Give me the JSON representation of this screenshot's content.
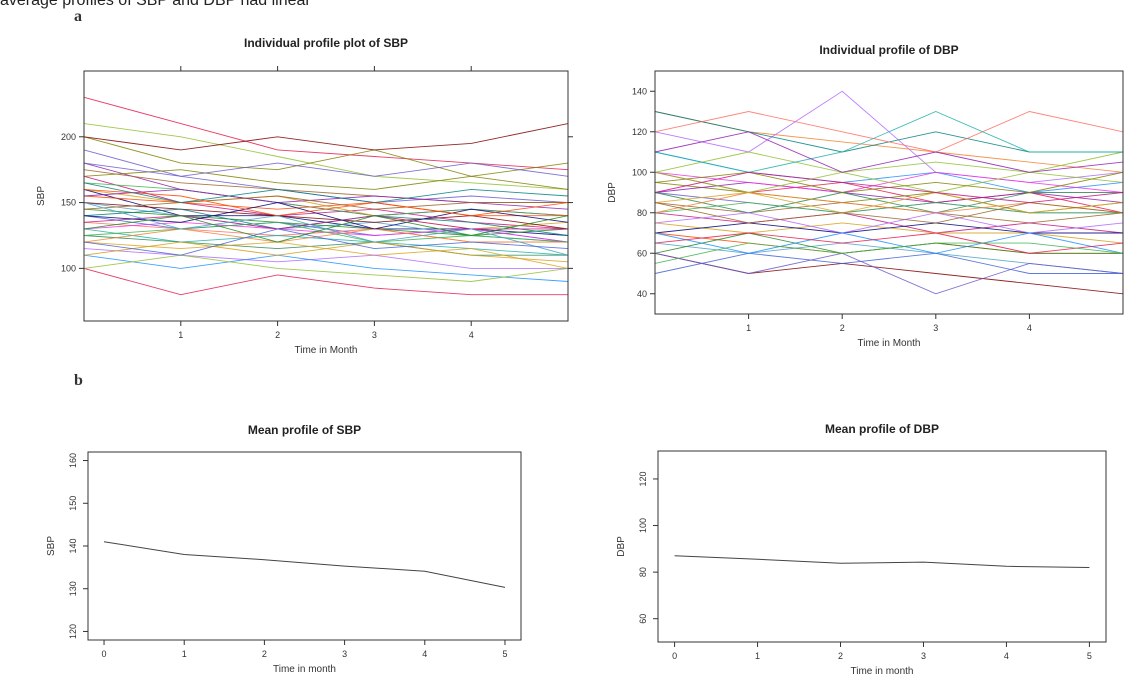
{
  "page": {
    "top_text": "average profiles of  SBP and DBP  had linear",
    "label_a": "a",
    "label_b": "b"
  },
  "chart_data": [
    {
      "id": "sbp_individual",
      "type": "line",
      "title": "Individual profile plot of SBP",
      "xlabel": "Time in Month",
      "ylabel": "SBP",
      "xlim": [
        0,
        5
      ],
      "ylim": [
        60,
        250
      ],
      "xticks": [
        1,
        2,
        3,
        4
      ],
      "yticks": [
        100,
        150,
        200
      ],
      "grid": false,
      "series_note": "many individual subject trajectories",
      "series": [
        {
          "values": [
            230,
            210,
            190,
            185,
            180,
            175
          ]
        },
        {
          "values": [
            210,
            200,
            185,
            170,
            165,
            160
          ]
        },
        {
          "values": [
            200,
            180,
            175,
            190,
            170,
            180
          ]
        },
        {
          "values": [
            190,
            170,
            160,
            150,
            155,
            150
          ]
        },
        {
          "values": [
            180,
            160,
            150,
            140,
            145,
            140
          ]
        },
        {
          "values": [
            175,
            165,
            160,
            155,
            150,
            150
          ]
        },
        {
          "values": [
            170,
            150,
            140,
            145,
            135,
            130
          ]
        },
        {
          "values": [
            165,
            160,
            150,
            140,
            145,
            140
          ]
        },
        {
          "values": [
            160,
            150,
            155,
            140,
            130,
            135
          ]
        },
        {
          "values": [
            160,
            140,
            140,
            130,
            130,
            125
          ]
        },
        {
          "values": [
            155,
            150,
            145,
            150,
            140,
            140
          ]
        },
        {
          "values": [
            150,
            140,
            130,
            135,
            125,
            120
          ]
        },
        {
          "values": [
            150,
            145,
            140,
            135,
            140,
            130
          ]
        },
        {
          "values": [
            145,
            140,
            135,
            130,
            125,
            130
          ]
        },
        {
          "values": [
            140,
            130,
            135,
            125,
            130,
            120
          ]
        },
        {
          "values": [
            140,
            145,
            130,
            140,
            135,
            125
          ]
        },
        {
          "values": [
            135,
            130,
            125,
            130,
            120,
            120
          ]
        },
        {
          "values": [
            130,
            120,
            125,
            120,
            115,
            110
          ]
        },
        {
          "values": [
            130,
            135,
            130,
            125,
            130,
            120
          ]
        },
        {
          "values": [
            125,
            120,
            115,
            120,
            110,
            110
          ]
        },
        {
          "values": [
            120,
            115,
            120,
            110,
            115,
            100
          ]
        },
        {
          "values": [
            120,
            130,
            120,
            130,
            120,
            120
          ]
        },
        {
          "values": [
            115,
            110,
            105,
            110,
            100,
            100
          ]
        },
        {
          "values": [
            110,
            100,
            110,
            100,
            95,
            90
          ]
        },
        {
          "values": [
            100,
            80,
            95,
            85,
            80,
            80
          ]
        },
        {
          "values": [
            100,
            110,
            100,
            95,
            90,
            100
          ]
        },
        {
          "values": [
            170,
            175,
            165,
            160,
            170,
            160
          ]
        },
        {
          "values": [
            180,
            170,
            180,
            170,
            180,
            170
          ]
        },
        {
          "values": [
            155,
            160,
            150,
            155,
            150,
            145
          ]
        },
        {
          "values": [
            145,
            150,
            155,
            145,
            150,
            150
          ]
        },
        {
          "values": [
            135,
            140,
            130,
            140,
            130,
            130
          ]
        },
        {
          "values": [
            125,
            130,
            135,
            120,
            125,
            120
          ]
        },
        {
          "values": [
            110,
            120,
            110,
            120,
            110,
            105
          ]
        },
        {
          "values": [
            140,
            135,
            150,
            130,
            145,
            135
          ]
        },
        {
          "values": [
            160,
            155,
            140,
            150,
            140,
            150
          ]
        },
        {
          "values": [
            150,
            130,
            140,
            120,
            130,
            110
          ]
        },
        {
          "values": [
            200,
            190,
            200,
            190,
            195,
            210
          ]
        },
        {
          "values": [
            130,
            140,
            120,
            140,
            125,
            140
          ]
        },
        {
          "values": [
            120,
            110,
            130,
            115,
            120,
            115
          ]
        },
        {
          "values": [
            165,
            150,
            160,
            150,
            160,
            155
          ]
        }
      ]
    },
    {
      "id": "dbp_individual",
      "type": "line",
      "title": "Individual profile of DBP",
      "xlabel": "Time in Month",
      "ylabel": "DBP",
      "xlim": [
        0,
        5
      ],
      "ylim": [
        30,
        150
      ],
      "xticks": [
        1,
        2,
        3,
        4
      ],
      "yticks": [
        40,
        60,
        80,
        100,
        120,
        140
      ],
      "grid": false,
      "series_note": "many individual subject trajectories",
      "series": [
        {
          "values": [
            130,
            120,
            115,
            110,
            105,
            100
          ]
        },
        {
          "values": [
            120,
            110,
            140,
            100,
            95,
            100
          ]
        },
        {
          "values": [
            110,
            100,
            95,
            100,
            90,
            95
          ]
        },
        {
          "values": [
            100,
            90,
            95,
            85,
            90,
            80
          ]
        },
        {
          "values": [
            100,
            110,
            100,
            105,
            100,
            110
          ]
        },
        {
          "values": [
            95,
            90,
            85,
            90,
            80,
            85
          ]
        },
        {
          "values": [
            90,
            85,
            80,
            85,
            80,
            80
          ]
        },
        {
          "values": [
            90,
            95,
            90,
            85,
            90,
            85
          ]
        },
        {
          "values": [
            85,
            80,
            85,
            80,
            75,
            80
          ]
        },
        {
          "values": [
            80,
            75,
            80,
            70,
            75,
            70
          ]
        },
        {
          "values": [
            80,
            85,
            80,
            85,
            80,
            80
          ]
        },
        {
          "values": [
            75,
            70,
            75,
            70,
            70,
            65
          ]
        },
        {
          "values": [
            70,
            75,
            70,
            75,
            70,
            70
          ]
        },
        {
          "values": [
            70,
            65,
            60,
            65,
            60,
            60
          ]
        },
        {
          "values": [
            65,
            60,
            65,
            60,
            55,
            50
          ]
        },
        {
          "values": [
            60,
            50,
            55,
            50,
            45,
            40
          ]
        },
        {
          "values": [
            60,
            70,
            60,
            65,
            60,
            60
          ]
        },
        {
          "values": [
            50,
            60,
            55,
            60,
            50,
            50
          ]
        },
        {
          "values": [
            130,
            120,
            110,
            120,
            110,
            110
          ]
        },
        {
          "values": [
            120,
            130,
            120,
            110,
            130,
            120
          ]
        },
        {
          "values": [
            110,
            100,
            110,
            130,
            110,
            110
          ]
        },
        {
          "values": [
            100,
            95,
            90,
            100,
            95,
            90
          ]
        },
        {
          "values": [
            90,
            80,
            90,
            80,
            90,
            90
          ]
        },
        {
          "values": [
            85,
            90,
            80,
            90,
            80,
            85
          ]
        },
        {
          "values": [
            80,
            90,
            85,
            80,
            85,
            80
          ]
        },
        {
          "values": [
            75,
            80,
            70,
            80,
            70,
            75
          ]
        },
        {
          "values": [
            70,
            60,
            70,
            60,
            70,
            60
          ]
        },
        {
          "values": [
            65,
            70,
            65,
            70,
            60,
            65
          ]
        },
        {
          "values": [
            100,
            90,
            100,
            90,
            100,
            95
          ]
        },
        {
          "values": [
            95,
            100,
            90,
            95,
            90,
            100
          ]
        },
        {
          "values": [
            60,
            50,
            60,
            40,
            55,
            50
          ]
        },
        {
          "values": [
            110,
            120,
            100,
            110,
            100,
            105
          ]
        },
        {
          "values": [
            85,
            75,
            80,
            75,
            85,
            80
          ]
        },
        {
          "values": [
            90,
            100,
            95,
            90,
            85,
            90
          ]
        },
        {
          "values": [
            55,
            65,
            60,
            65,
            65,
            60
          ]
        }
      ]
    },
    {
      "id": "sbp_mean",
      "type": "line",
      "title": "Mean profile of SBP",
      "xlabel": "Time in month",
      "ylabel": "SBP",
      "xlim": [
        -0.2,
        5.2
      ],
      "ylim": [
        118,
        162
      ],
      "xticks": [
        0,
        1,
        2,
        3,
        4,
        5
      ],
      "yticks": [
        120,
        130,
        140,
        150,
        160
      ],
      "grid": false,
      "x": [
        0,
        1,
        2,
        3,
        4,
        5
      ],
      "series": [
        {
          "values": [
            141,
            138,
            136.8,
            135.3,
            134.1,
            130.3
          ]
        }
      ]
    },
    {
      "id": "dbp_mean",
      "type": "line",
      "title": "Mean profile of DBP",
      "xlabel": "Time in month",
      "ylabel": "DBP",
      "xlim": [
        -0.2,
        5.2
      ],
      "ylim": [
        50,
        132
      ],
      "xticks": [
        0,
        1,
        2,
        3,
        4,
        5
      ],
      "yticks": [
        60,
        80,
        100,
        120
      ],
      "grid": false,
      "x": [
        0,
        1,
        2,
        3,
        4,
        5
      ],
      "series": [
        {
          "values": [
            87,
            85.5,
            83.8,
            84.3,
            82.5,
            82
          ]
        }
      ]
    }
  ]
}
